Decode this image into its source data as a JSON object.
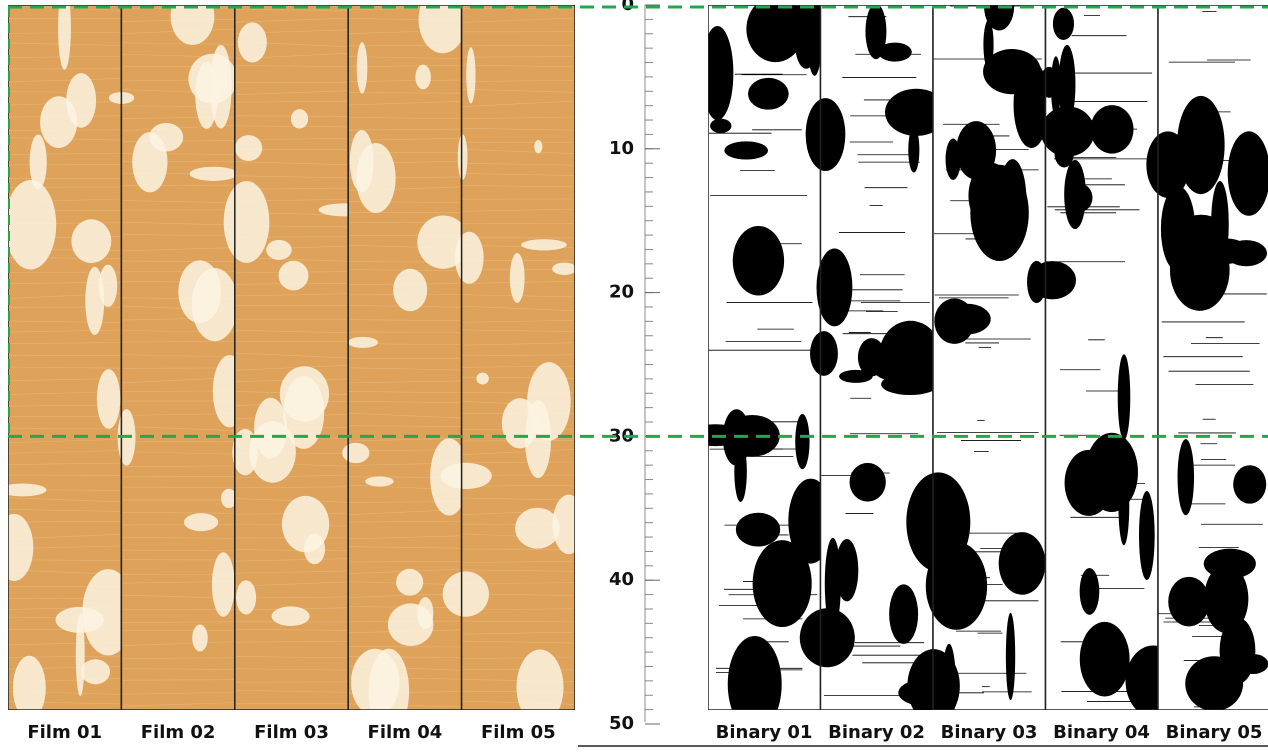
{
  "films": [
    "Film 01",
    "Film 02",
    "Film 03",
    "Film 04",
    "Film 05"
  ],
  "binaries": [
    "Binary 01",
    "Binary 02",
    "Binary 03",
    "Binary 04",
    "Binary 05"
  ],
  "scale": {
    "ticks": [
      0,
      10,
      20,
      30,
      40,
      50
    ]
  }
}
